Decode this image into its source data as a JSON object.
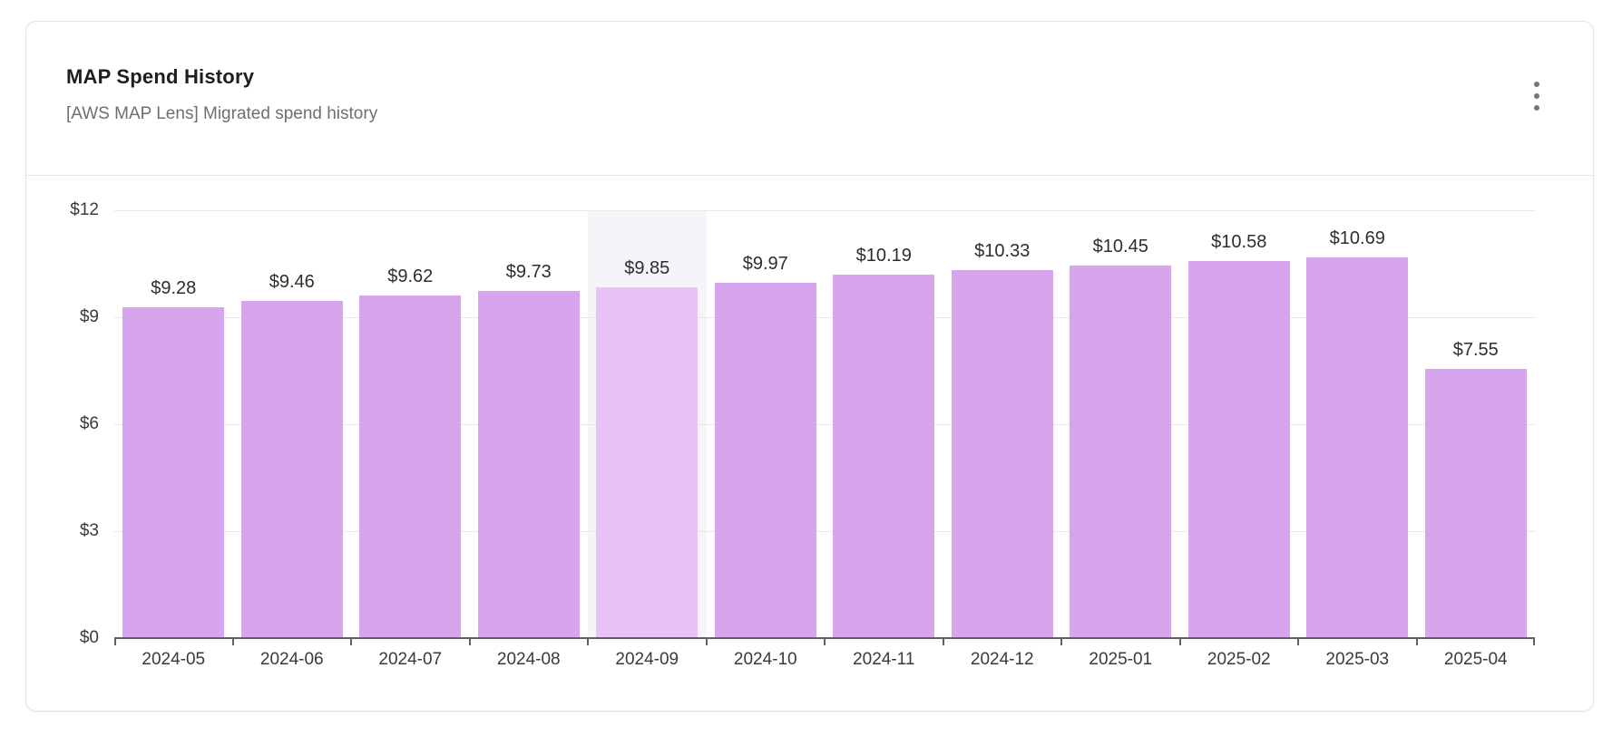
{
  "card": {
    "title": "MAP Spend History",
    "subtitle": "[AWS MAP Lens] Migrated spend history",
    "menu_icon": "kebab-menu-icon"
  },
  "colors": {
    "bar": "#d7a5ee",
    "bar_highlight": "#e8c3f7",
    "highlight_band": "#f4f4f9",
    "gridline": "#e8e8e8",
    "axis": "#5f6065",
    "card_border": "#e3e3e7",
    "title_text": "#1e1e1e",
    "subtitle_text": "#6f6f6f",
    "label_text": "#3a3a3a",
    "value_label_text": "#2d2d2d"
  },
  "chart_data": {
    "type": "bar",
    "title": "MAP Spend History",
    "xlabel": "",
    "ylabel": "",
    "categories": [
      "2024-05",
      "2024-06",
      "2024-07",
      "2024-08",
      "2024-09",
      "2024-10",
      "2024-11",
      "2024-12",
      "2025-01",
      "2025-02",
      "2025-03",
      "2025-04"
    ],
    "values": [
      9.28,
      9.46,
      9.62,
      9.73,
      9.85,
      9.97,
      10.19,
      10.33,
      10.45,
      10.58,
      10.69,
      7.55
    ],
    "value_labels": [
      "$9.28",
      "$9.46",
      "$9.62",
      "$9.73",
      "$9.85",
      "$9.97",
      "$10.19",
      "$10.33",
      "$10.45",
      "$10.58",
      "$10.69",
      "$7.55"
    ],
    "y_tick_labels": [
      "$0",
      "$3",
      "$6",
      "$9",
      "$12"
    ],
    "y_tick_values": [
      0,
      3,
      6,
      9,
      12
    ],
    "ylim": [
      0,
      12
    ],
    "grid": "horizontal",
    "legend": "none",
    "highlighted_index": 4,
    "highlighted_category": "2024-09"
  }
}
